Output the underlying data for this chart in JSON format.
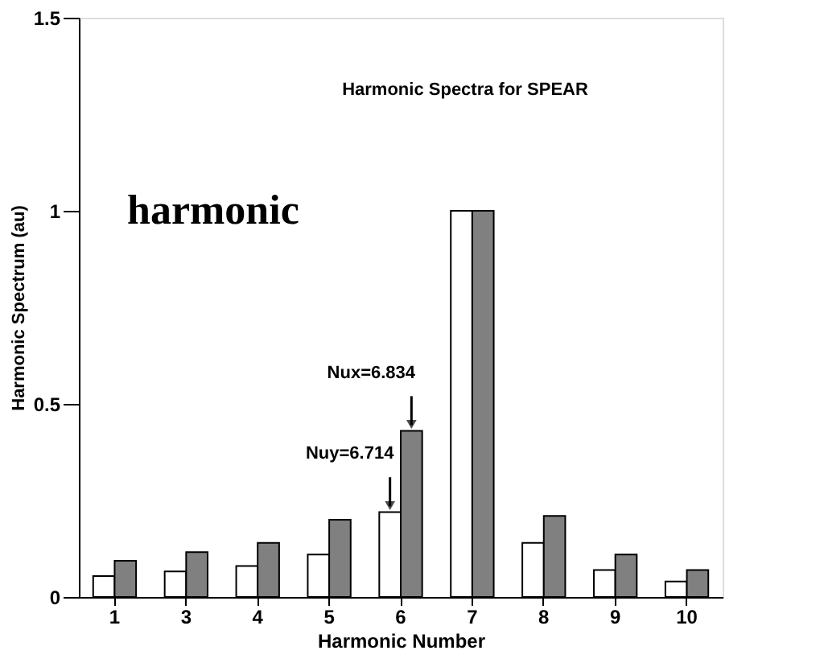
{
  "chart_data": {
    "type": "bar",
    "title": "Harmonic Spectra for SPEAR",
    "xlabel": "Harmonic Number",
    "ylabel": "Harmonic Spectrum (au)",
    "categories": [
      "1",
      "3",
      "4",
      "5",
      "6",
      "7",
      "8",
      "9",
      "10"
    ],
    "series": [
      {
        "color": "#ffffff",
        "values": [
          0.054,
          0.066,
          0.08,
          0.11,
          0.22,
          1,
          0.14,
          0.07,
          0.04
        ]
      },
      {
        "color": "#808080",
        "values": [
          0.094,
          0.116,
          0.14,
          0.2,
          0.43,
          1,
          0.21,
          0.11,
          0.07
        ]
      }
    ],
    "ylim": [
      0,
      1.5
    ],
    "yticks": [
      0,
      0.5,
      1,
      1.5
    ],
    "grid": false,
    "annotations": [
      "harmonic",
      {
        "text": "Nux=6.834",
        "x": "6",
        "y": 0.43
      },
      {
        "text": "Nuy=6.714",
        "x": "6",
        "y": 0.22
      }
    ]
  }
}
